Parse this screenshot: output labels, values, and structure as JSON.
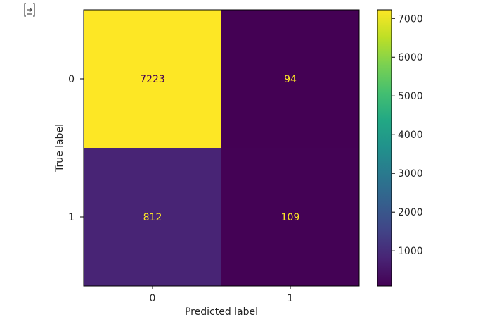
{
  "output_icon": "collapse-output-icon",
  "chart_data": {
    "type": "heatmap",
    "title": "",
    "xlabel": "Predicted label",
    "ylabel": "True label",
    "x_categories": [
      "0",
      "1"
    ],
    "y_categories": [
      "0",
      "1"
    ],
    "values": [
      [
        7223,
        94
      ],
      [
        812,
        109
      ]
    ],
    "colormap": "viridis",
    "colorbar": {
      "ticks": [
        1000,
        2000,
        3000,
        4000,
        5000,
        6000,
        7000
      ],
      "tick_labels": [
        "1000",
        "2000",
        "3000",
        "4000",
        "5000",
        "6000",
        "7000"
      ],
      "range": [
        94,
        7223
      ]
    },
    "colors": {
      "high": "#fde725",
      "low": "#440154",
      "mid_812": "#472c7a",
      "text_on_light": "#440154",
      "text_on_dark": "#fde725"
    },
    "grid": false,
    "legend": "none"
  }
}
